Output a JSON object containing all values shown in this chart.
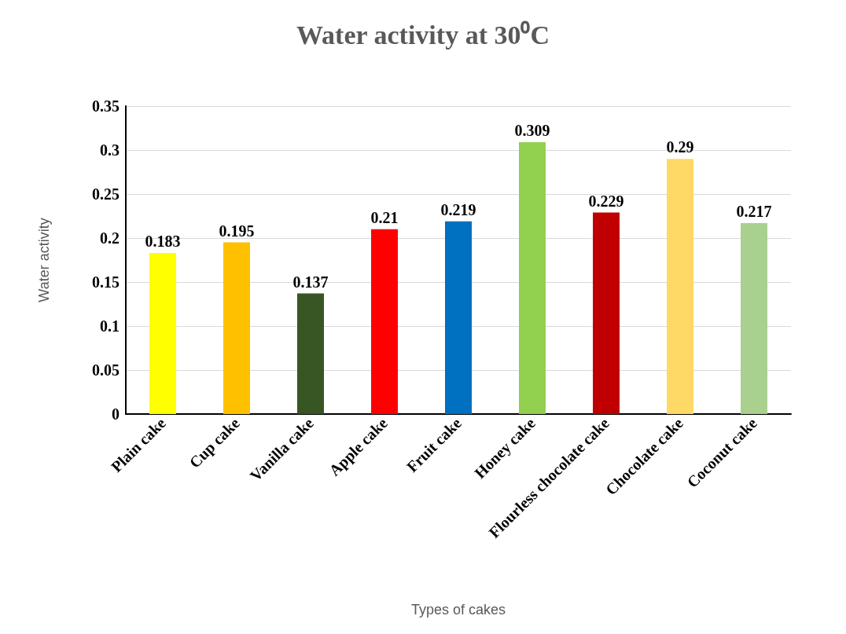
{
  "chart_data": {
    "type": "bar",
    "title": "Water activity at 30⁰C",
    "xlabel": "Types of cakes",
    "ylabel": "Water activity",
    "categories": [
      "Plain cake",
      "Cup cake",
      "Vanilla cake",
      "Apple cake",
      "Fruit cake",
      "Honey cake",
      "Flourless chocolate cake",
      "Chocolate cake",
      "Coconut cake"
    ],
    "values": [
      0.183,
      0.195,
      0.137,
      0.21,
      0.219,
      0.309,
      0.229,
      0.29,
      0.217
    ],
    "colors": [
      "#ffff00",
      "#ffc000",
      "#375623",
      "#ff0000",
      "#0070c0",
      "#92d050",
      "#c00000",
      "#ffd966",
      "#a9d08e"
    ],
    "ylim": [
      0,
      0.35
    ],
    "yticks": [
      0,
      0.05,
      0.1,
      0.15,
      0.2,
      0.25,
      0.3,
      0.35
    ],
    "grid": true,
    "data_labels": true
  }
}
